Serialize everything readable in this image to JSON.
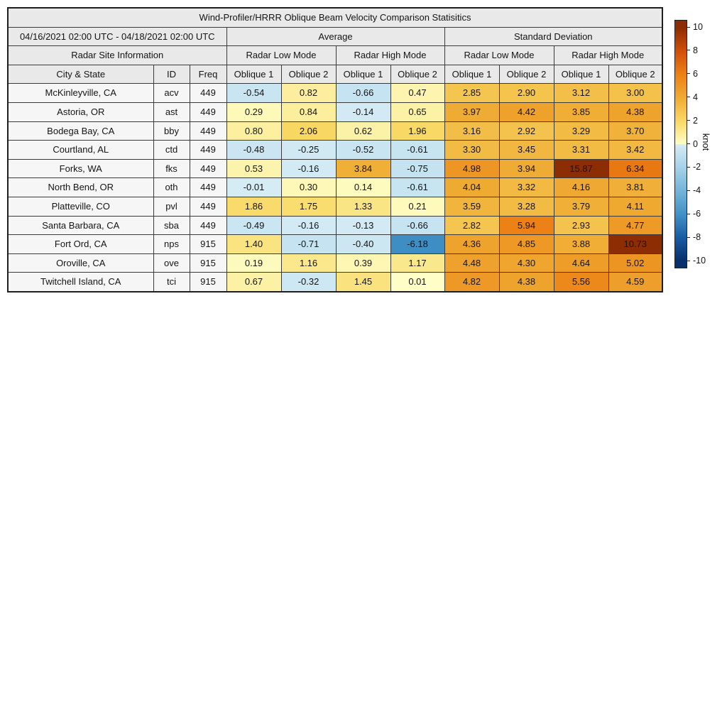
{
  "title": "Wind-Profiler/HRRR Oblique Beam Velocity Comparison Statisitics",
  "header": {
    "date_range": "04/16/2021 02:00 UTC - 04/18/2021 02:00 UTC",
    "average_group": "Average",
    "std_group": "Standard Deviation",
    "site_info": "Radar Site Information",
    "modes": [
      "Radar Low Mode",
      "Radar High Mode",
      "Radar Low Mode",
      "Radar High Mode"
    ],
    "city_col": "City & State",
    "id_col": "ID",
    "freq_col": "Freq",
    "oblique_cols": [
      "Oblique 1",
      "Oblique 2",
      "Oblique 1",
      "Oblique 2",
      "Oblique 1",
      "Oblique 2",
      "Oblique 1",
      "Oblique 2"
    ]
  },
  "chart_data": {
    "type": "heatmap",
    "title": "Wind-Profiler/HRRR Oblique Beam Velocity Comparison Statisitics",
    "value_columns": [
      "Average Radar Low Mode Oblique 1",
      "Average Radar Low Mode Oblique 2",
      "Average Radar High Mode Oblique 1",
      "Average Radar High Mode Oblique 2",
      "Std Radar Low Mode Oblique 1",
      "Std Radar Low Mode Oblique 2",
      "Std Radar High Mode Oblique 1",
      "Std Radar High Mode Oblique 2"
    ],
    "rows": [
      {
        "city": "McKinleyville, CA",
        "id": "acv",
        "freq": "449",
        "values": [
          -0.54,
          0.82,
          -0.66,
          0.47,
          2.85,
          2.9,
          3.12,
          3.0
        ]
      },
      {
        "city": "Astoria, OR",
        "id": "ast",
        "freq": "449",
        "values": [
          0.29,
          0.84,
          -0.14,
          0.65,
          3.97,
          4.42,
          3.85,
          4.38
        ]
      },
      {
        "city": "Bodega Bay, CA",
        "id": "bby",
        "freq": "449",
        "values": [
          0.8,
          2.06,
          0.62,
          1.96,
          3.16,
          2.92,
          3.29,
          3.7
        ]
      },
      {
        "city": "Courtland, AL",
        "id": "ctd",
        "freq": "449",
        "values": [
          -0.48,
          -0.25,
          -0.52,
          -0.61,
          3.3,
          3.45,
          3.31,
          3.42
        ]
      },
      {
        "city": "Forks, WA",
        "id": "fks",
        "freq": "449",
        "values": [
          0.53,
          -0.16,
          3.84,
          -0.75,
          4.98,
          3.94,
          15.87,
          6.34
        ]
      },
      {
        "city": "North Bend, OR",
        "id": "oth",
        "freq": "449",
        "values": [
          -0.01,
          0.3,
          0.14,
          -0.61,
          4.04,
          3.32,
          4.16,
          3.81
        ]
      },
      {
        "city": "Platteville, CO",
        "id": "pvl",
        "freq": "449",
        "values": [
          1.86,
          1.75,
          1.33,
          0.21,
          3.59,
          3.28,
          3.79,
          4.11
        ]
      },
      {
        "city": "Santa Barbara, CA",
        "id": "sba",
        "freq": "449",
        "values": [
          -0.49,
          -0.16,
          -0.13,
          -0.66,
          2.82,
          5.94,
          2.93,
          4.77
        ]
      },
      {
        "city": "Fort Ord, CA",
        "id": "nps",
        "freq": "915",
        "values": [
          1.4,
          -0.71,
          -0.4,
          -6.18,
          4.36,
          4.85,
          3.88,
          10.73
        ]
      },
      {
        "city": "Oroville, CA",
        "id": "ove",
        "freq": "915",
        "values": [
          0.19,
          1.16,
          0.39,
          1.17,
          4.48,
          4.3,
          4.64,
          5.02
        ]
      },
      {
        "city": "Twitchell Island, CA",
        "id": "tci",
        "freq": "915",
        "values": [
          0.67,
          -0.32,
          1.45,
          0.01,
          4.82,
          4.38,
          5.56,
          4.59
        ]
      }
    ],
    "colorbar": {
      "label": "knot",
      "vmin": -10,
      "vmax": 10,
      "ticks": [
        10,
        8,
        6,
        4,
        2,
        0,
        -2,
        -4,
        -6,
        -8,
        -10
      ],
      "colormap_stops": [
        [
          -10.61,
          "#08306b"
        ],
        [
          -10,
          "#08306b"
        ],
        [
          -8,
          "#1b5ca4"
        ],
        [
          -6,
          "#4292c6"
        ],
        [
          -4,
          "#75b4d8"
        ],
        [
          -2,
          "#a6d2e8"
        ],
        [
          -0.005,
          "#d6ecf5"
        ],
        [
          0.005,
          "#fefec6"
        ],
        [
          2,
          "#f8d863"
        ],
        [
          4,
          "#efab33"
        ],
        [
          6,
          "#ec8014"
        ],
        [
          8,
          "#d04e08"
        ],
        [
          10,
          "#8c2d04"
        ],
        [
          10.61,
          "#8c2d04"
        ]
      ]
    }
  },
  "colors": {
    "header_bg": "#e9e9e9",
    "rowlabel_bg": "#f6f6f6",
    "border": "#3a3a3a",
    "text": "#141414"
  }
}
